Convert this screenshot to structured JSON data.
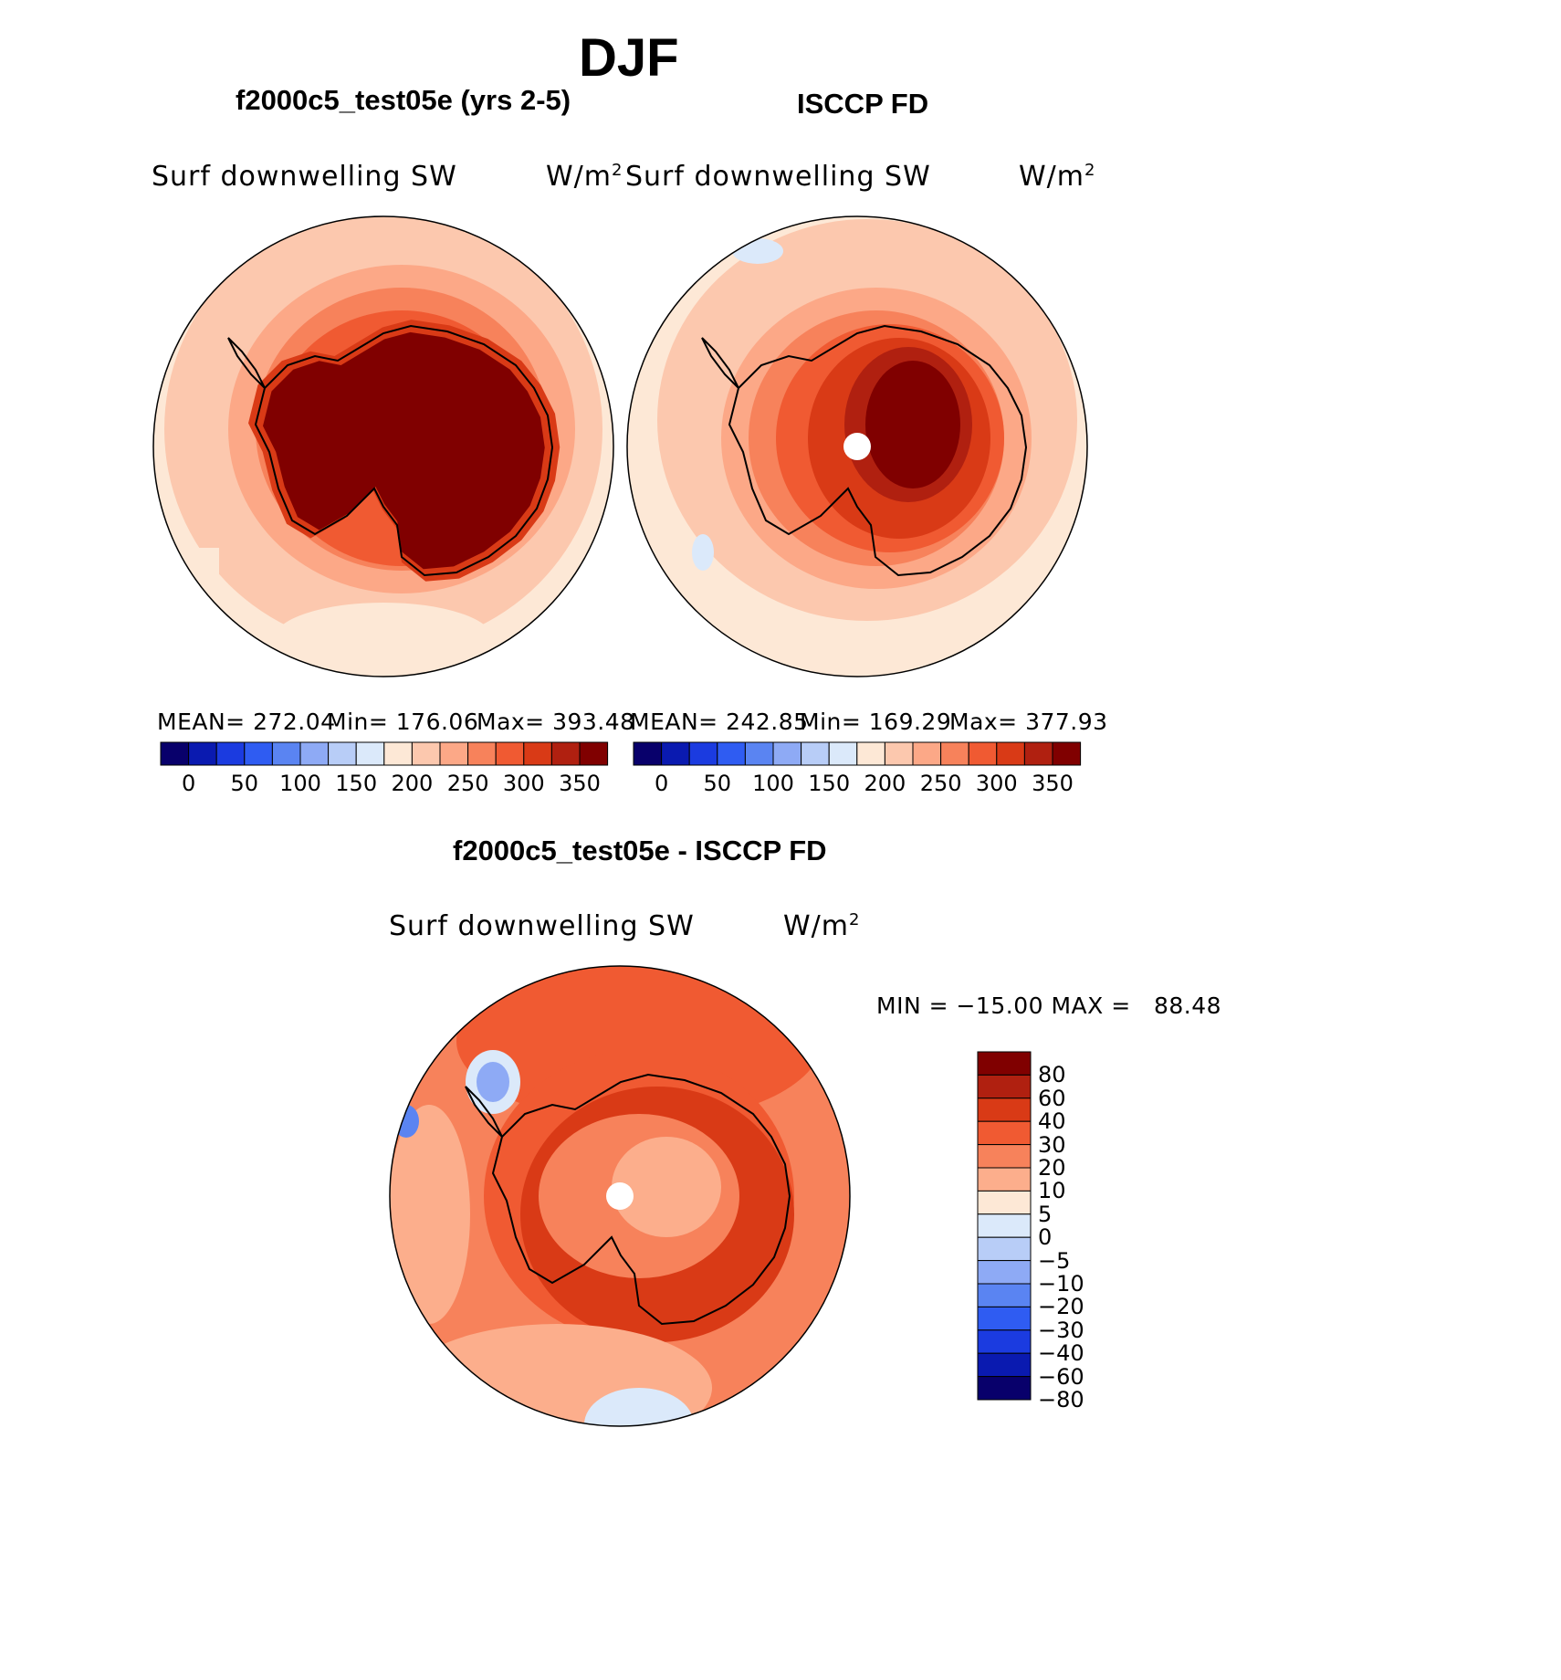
{
  "figure_title": "DJF",
  "panels": {
    "model": {
      "title": "f2000c5_test05e (yrs 2-5)",
      "variable": "Surf downwelling SW",
      "units_base": "W/m",
      "units_exp": "2",
      "mean_text": "MEAN= 272.04",
      "min_text": "Min= 176.06",
      "max_text": "Max= 393.48"
    },
    "obs": {
      "title": "ISCCP FD",
      "variable": "Surf downwelling SW",
      "units_base": "W/m",
      "units_exp": "2",
      "mean_text": "MEAN= 242.85",
      "min_text": "Min= 169.29",
      "max_text": "Max= 377.93"
    },
    "diff": {
      "title": "f2000c5_test05e - ISCCP FD",
      "variable": "Surf downwelling SW",
      "units_base": "W/m",
      "units_exp": "2",
      "minmax_text": "MIN = −15.00 MAX =   88.48"
    }
  },
  "colorbars": {
    "abs": {
      "ticks": [
        "0",
        "50",
        "100",
        "150",
        "200",
        "250",
        "300",
        "350"
      ],
      "colors": [
        "#08006b",
        "#0a1ab0",
        "#1b3be0",
        "#2f5cf2",
        "#5a84f2",
        "#8eaaf5",
        "#b8cdf7",
        "#dbe9fa",
        "#fde8d6",
        "#fcc8ae",
        "#fca887",
        "#f7825b",
        "#f05a32",
        "#d93a16",
        "#b02010",
        "#800000"
      ]
    },
    "diff": {
      "labels": [
        "80",
        "60",
        "40",
        "30",
        "20",
        "10",
        "5",
        "0",
        "−5",
        "−10",
        "−20",
        "−30",
        "−40",
        "−60",
        "−80"
      ],
      "colors": [
        "#800000",
        "#b02010",
        "#d93a16",
        "#f05a32",
        "#f7825b",
        "#fcae8c",
        "#fde8d6",
        "#dbe9fa",
        "#b8cdf7",
        "#8eaaf5",
        "#5a84f2",
        "#2f5cf2",
        "#1b3be0",
        "#0a1ab0",
        "#08006b"
      ]
    }
  }
}
